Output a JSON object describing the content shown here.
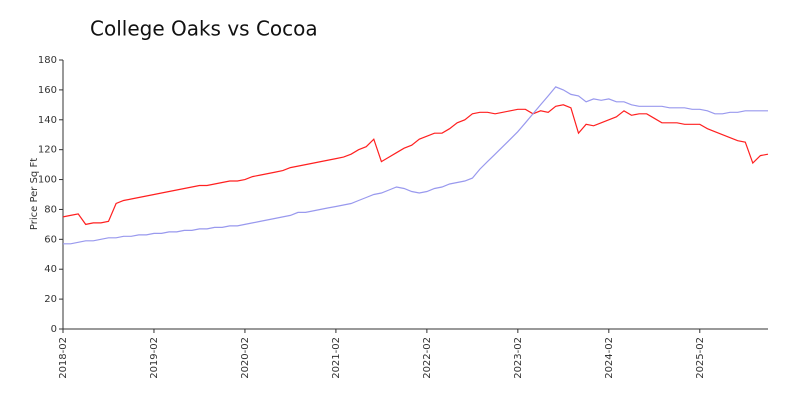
{
  "chart_data": {
    "type": "line",
    "title": "College Oaks vs Cocoa",
    "y_label": "Price Per Sq Ft",
    "categories": [
      "2018-02",
      null,
      null,
      null,
      null,
      null,
      null,
      null,
      null,
      null,
      null,
      null,
      "2019-02",
      null,
      null,
      null,
      null,
      null,
      null,
      null,
      null,
      null,
      null,
      null,
      "2020-02",
      null,
      null,
      null,
      null,
      null,
      null,
      null,
      null,
      null,
      null,
      null,
      "2021-02",
      null,
      null,
      null,
      null,
      null,
      null,
      null,
      null,
      null,
      null,
      null,
      "2022-02",
      null,
      null,
      null,
      null,
      null,
      null,
      null,
      null,
      null,
      null,
      null,
      "2023-02",
      null,
      null,
      null,
      null,
      null,
      null,
      null,
      null,
      null,
      null,
      null,
      "2024-02",
      null,
      null,
      null,
      null,
      null,
      null,
      null,
      null,
      null,
      null,
      null,
      "2025-02",
      null,
      null,
      null,
      null,
      null,
      null,
      null,
      null,
      null
    ],
    "series": [
      {
        "color": "#ff2020",
        "values": [
          75,
          76,
          77,
          70,
          71,
          71,
          72,
          84,
          86,
          87,
          88,
          89,
          90,
          91,
          92,
          93,
          94,
          95,
          96,
          96,
          97,
          98,
          99,
          99,
          100,
          102,
          103,
          104,
          105,
          106,
          108,
          109,
          110,
          111,
          112,
          113,
          114,
          115,
          117,
          120,
          122,
          127,
          112,
          115,
          118,
          121,
          123,
          127,
          129,
          131,
          131,
          134,
          138,
          140,
          144,
          145,
          145,
          144,
          145,
          146,
          147,
          147,
          144,
          146,
          145,
          149,
          150,
          148,
          131,
          137,
          136,
          138,
          140,
          142,
          146,
          143,
          144,
          144,
          141,
          138,
          138,
          138,
          137,
          137,
          137,
          134,
          132,
          130,
          128,
          126,
          125,
          111,
          116,
          117
        ]
      },
      {
        "color": "#9999ee",
        "values": [
          57,
          57,
          58,
          59,
          59,
          60,
          61,
          61,
          62,
          62,
          63,
          63,
          64,
          64,
          65,
          65,
          66,
          66,
          67,
          67,
          68,
          68,
          69,
          69,
          70,
          71,
          72,
          73,
          74,
          75,
          76,
          78,
          78,
          79,
          80,
          81,
          82,
          83,
          84,
          86,
          88,
          90,
          91,
          93,
          95,
          94,
          92,
          91,
          92,
          94,
          95,
          97,
          98,
          99,
          101,
          107,
          112,
          117,
          122,
          127,
          132,
          138,
          144,
          150,
          156,
          162,
          160,
          157,
          156,
          152,
          154,
          153,
          154,
          152,
          152,
          150,
          149,
          149,
          149,
          149,
          148,
          148,
          148,
          147,
          147,
          146,
          144,
          144,
          145,
          145,
          146,
          146,
          146,
          146
        ]
      }
    ],
    "ylim": [
      0,
      180
    ],
    "yticks": [
      0,
      20,
      40,
      60,
      80,
      100,
      120,
      140,
      160,
      180
    ]
  }
}
